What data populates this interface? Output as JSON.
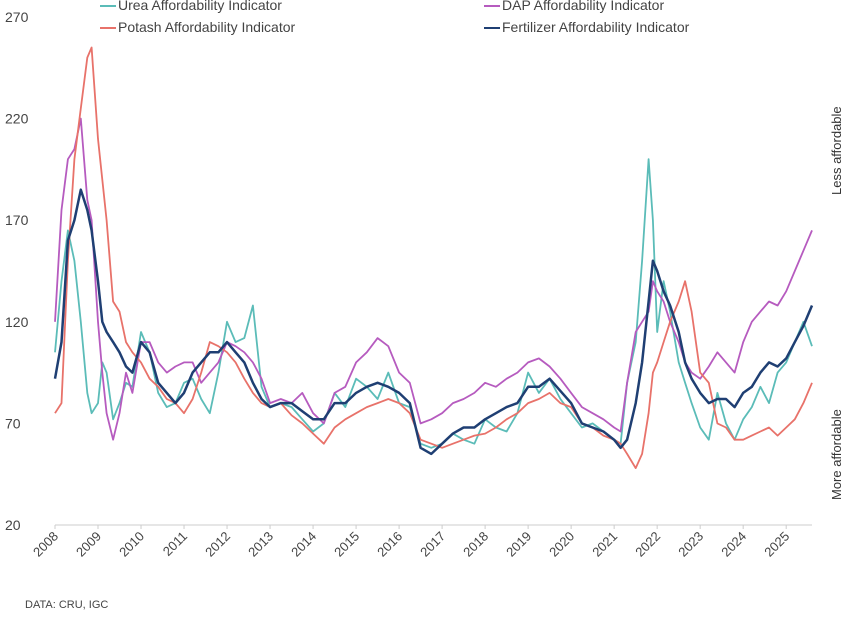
{
  "chart_data": {
    "type": "line",
    "x": [
      2008.0,
      2008.15,
      2008.3,
      2008.45,
      2008.6,
      2008.75,
      2008.85,
      2009.0,
      2009.1,
      2009.2,
      2009.35,
      2009.5,
      2009.65,
      2009.8,
      2010.0,
      2010.2,
      2010.4,
      2010.6,
      2010.8,
      2011.0,
      2011.2,
      2011.4,
      2011.6,
      2011.8,
      2012.0,
      2012.2,
      2012.4,
      2012.6,
      2012.8,
      2013.0,
      2013.25,
      2013.5,
      2013.75,
      2014.0,
      2014.25,
      2014.5,
      2014.75,
      2015.0,
      2015.25,
      2015.5,
      2015.75,
      2016.0,
      2016.25,
      2016.5,
      2016.75,
      2017.0,
      2017.25,
      2017.5,
      2017.75,
      2018.0,
      2018.25,
      2018.5,
      2018.75,
      2019.0,
      2019.25,
      2019.5,
      2019.75,
      2020.0,
      2020.25,
      2020.5,
      2020.75,
      2021.0,
      2021.15,
      2021.3,
      2021.5,
      2021.65,
      2021.8,
      2021.9,
      2022.0,
      2022.15,
      2022.3,
      2022.5,
      2022.65,
      2022.8,
      2023.0,
      2023.2,
      2023.4,
      2023.6,
      2023.8,
      2024.0,
      2024.2,
      2024.4,
      2024.6,
      2024.8,
      2025.0,
      2025.2,
      2025.4,
      2025.6
    ],
    "series": [
      {
        "name": "Urea Affordability Indicator",
        "color": "#5bbcb8",
        "values": [
          105,
          140,
          165,
          150,
          120,
          85,
          75,
          80,
          100,
          95,
          72,
          80,
          90,
          88,
          115,
          105,
          85,
          78,
          80,
          90,
          92,
          82,
          75,
          95,
          120,
          110,
          112,
          128,
          88,
          78,
          80,
          78,
          72,
          66,
          70,
          85,
          78,
          92,
          88,
          82,
          95,
          80,
          78,
          60,
          58,
          60,
          65,
          62,
          60,
          72,
          68,
          66,
          75,
          95,
          85,
          92,
          82,
          75,
          68,
          70,
          66,
          62,
          60,
          90,
          110,
          150,
          200,
          170,
          115,
          140,
          125,
          100,
          90,
          80,
          68,
          62,
          85,
          70,
          62,
          72,
          78,
          88,
          80,
          95,
          100,
          110,
          120,
          108
        ]
      },
      {
        "name": "DAP Affordability Indicator",
        "color": "#b65bbf",
        "values": [
          120,
          175,
          200,
          205,
          220,
          180,
          170,
          120,
          95,
          75,
          62,
          75,
          95,
          85,
          110,
          110,
          100,
          95,
          98,
          100,
          100,
          90,
          95,
          100,
          110,
          108,
          105,
          100,
          92,
          80,
          82,
          80,
          85,
          75,
          70,
          85,
          88,
          100,
          105,
          112,
          108,
          95,
          90,
          70,
          72,
          75,
          80,
          82,
          85,
          90,
          88,
          92,
          95,
          100,
          102,
          98,
          92,
          85,
          78,
          75,
          72,
          68,
          66,
          90,
          115,
          120,
          125,
          140,
          135,
          130,
          120,
          110,
          100,
          95,
          92,
          98,
          105,
          100,
          95,
          110,
          120,
          125,
          130,
          128,
          135,
          145,
          155,
          165
        ]
      },
      {
        "name": "Potash Affordability Indicator",
        "color": "#e8726a",
        "values": [
          75,
          80,
          150,
          200,
          225,
          250,
          255,
          210,
          190,
          170,
          130,
          125,
          110,
          105,
          100,
          92,
          88,
          82,
          80,
          75,
          82,
          95,
          110,
          108,
          105,
          100,
          92,
          85,
          80,
          78,
          80,
          74,
          70,
          65,
          60,
          68,
          72,
          75,
          78,
          80,
          82,
          80,
          75,
          62,
          60,
          58,
          60,
          62,
          64,
          65,
          68,
          72,
          75,
          80,
          82,
          85,
          80,
          78,
          70,
          68,
          64,
          62,
          60,
          55,
          48,
          55,
          75,
          95,
          100,
          110,
          120,
          130,
          140,
          125,
          95,
          90,
          70,
          68,
          62,
          62,
          64,
          66,
          68,
          64,
          68,
          72,
          80,
          90
        ]
      },
      {
        "name": "Fertilizer Affordability Indicator",
        "color": "#1f3f73",
        "values": [
          92,
          110,
          160,
          170,
          185,
          175,
          165,
          140,
          120,
          115,
          110,
          105,
          98,
          95,
          110,
          105,
          90,
          85,
          80,
          85,
          95,
          100,
          105,
          105,
          110,
          105,
          100,
          90,
          82,
          78,
          80,
          80,
          76,
          72,
          72,
          80,
          80,
          85,
          88,
          90,
          88,
          85,
          80,
          58,
          55,
          60,
          65,
          68,
          68,
          72,
          75,
          78,
          80,
          88,
          88,
          92,
          86,
          80,
          70,
          68,
          66,
          62,
          58,
          62,
          80,
          100,
          130,
          150,
          145,
          135,
          128,
          115,
          100,
          92,
          85,
          80,
          82,
          82,
          78,
          85,
          88,
          95,
          100,
          98,
          102,
          110,
          118,
          128
        ]
      }
    ],
    "x_ticks": [
      "2008",
      "2009",
      "2010",
      "2011",
      "2012",
      "2013",
      "2014",
      "2015",
      "2016",
      "2017",
      "2018",
      "2019",
      "2020",
      "2021",
      "2022",
      "2023",
      "2024",
      "2025"
    ],
    "y_ticks": [
      20,
      70,
      120,
      170,
      220,
      270
    ],
    "ylim": [
      20,
      270
    ],
    "xlim": [
      2008,
      2025.6
    ],
    "right_labels": {
      "top": "Less affordable",
      "bottom": "More affordable"
    },
    "legend_position": "top",
    "grid": false
  },
  "source": "DATA: CRU, IGC"
}
